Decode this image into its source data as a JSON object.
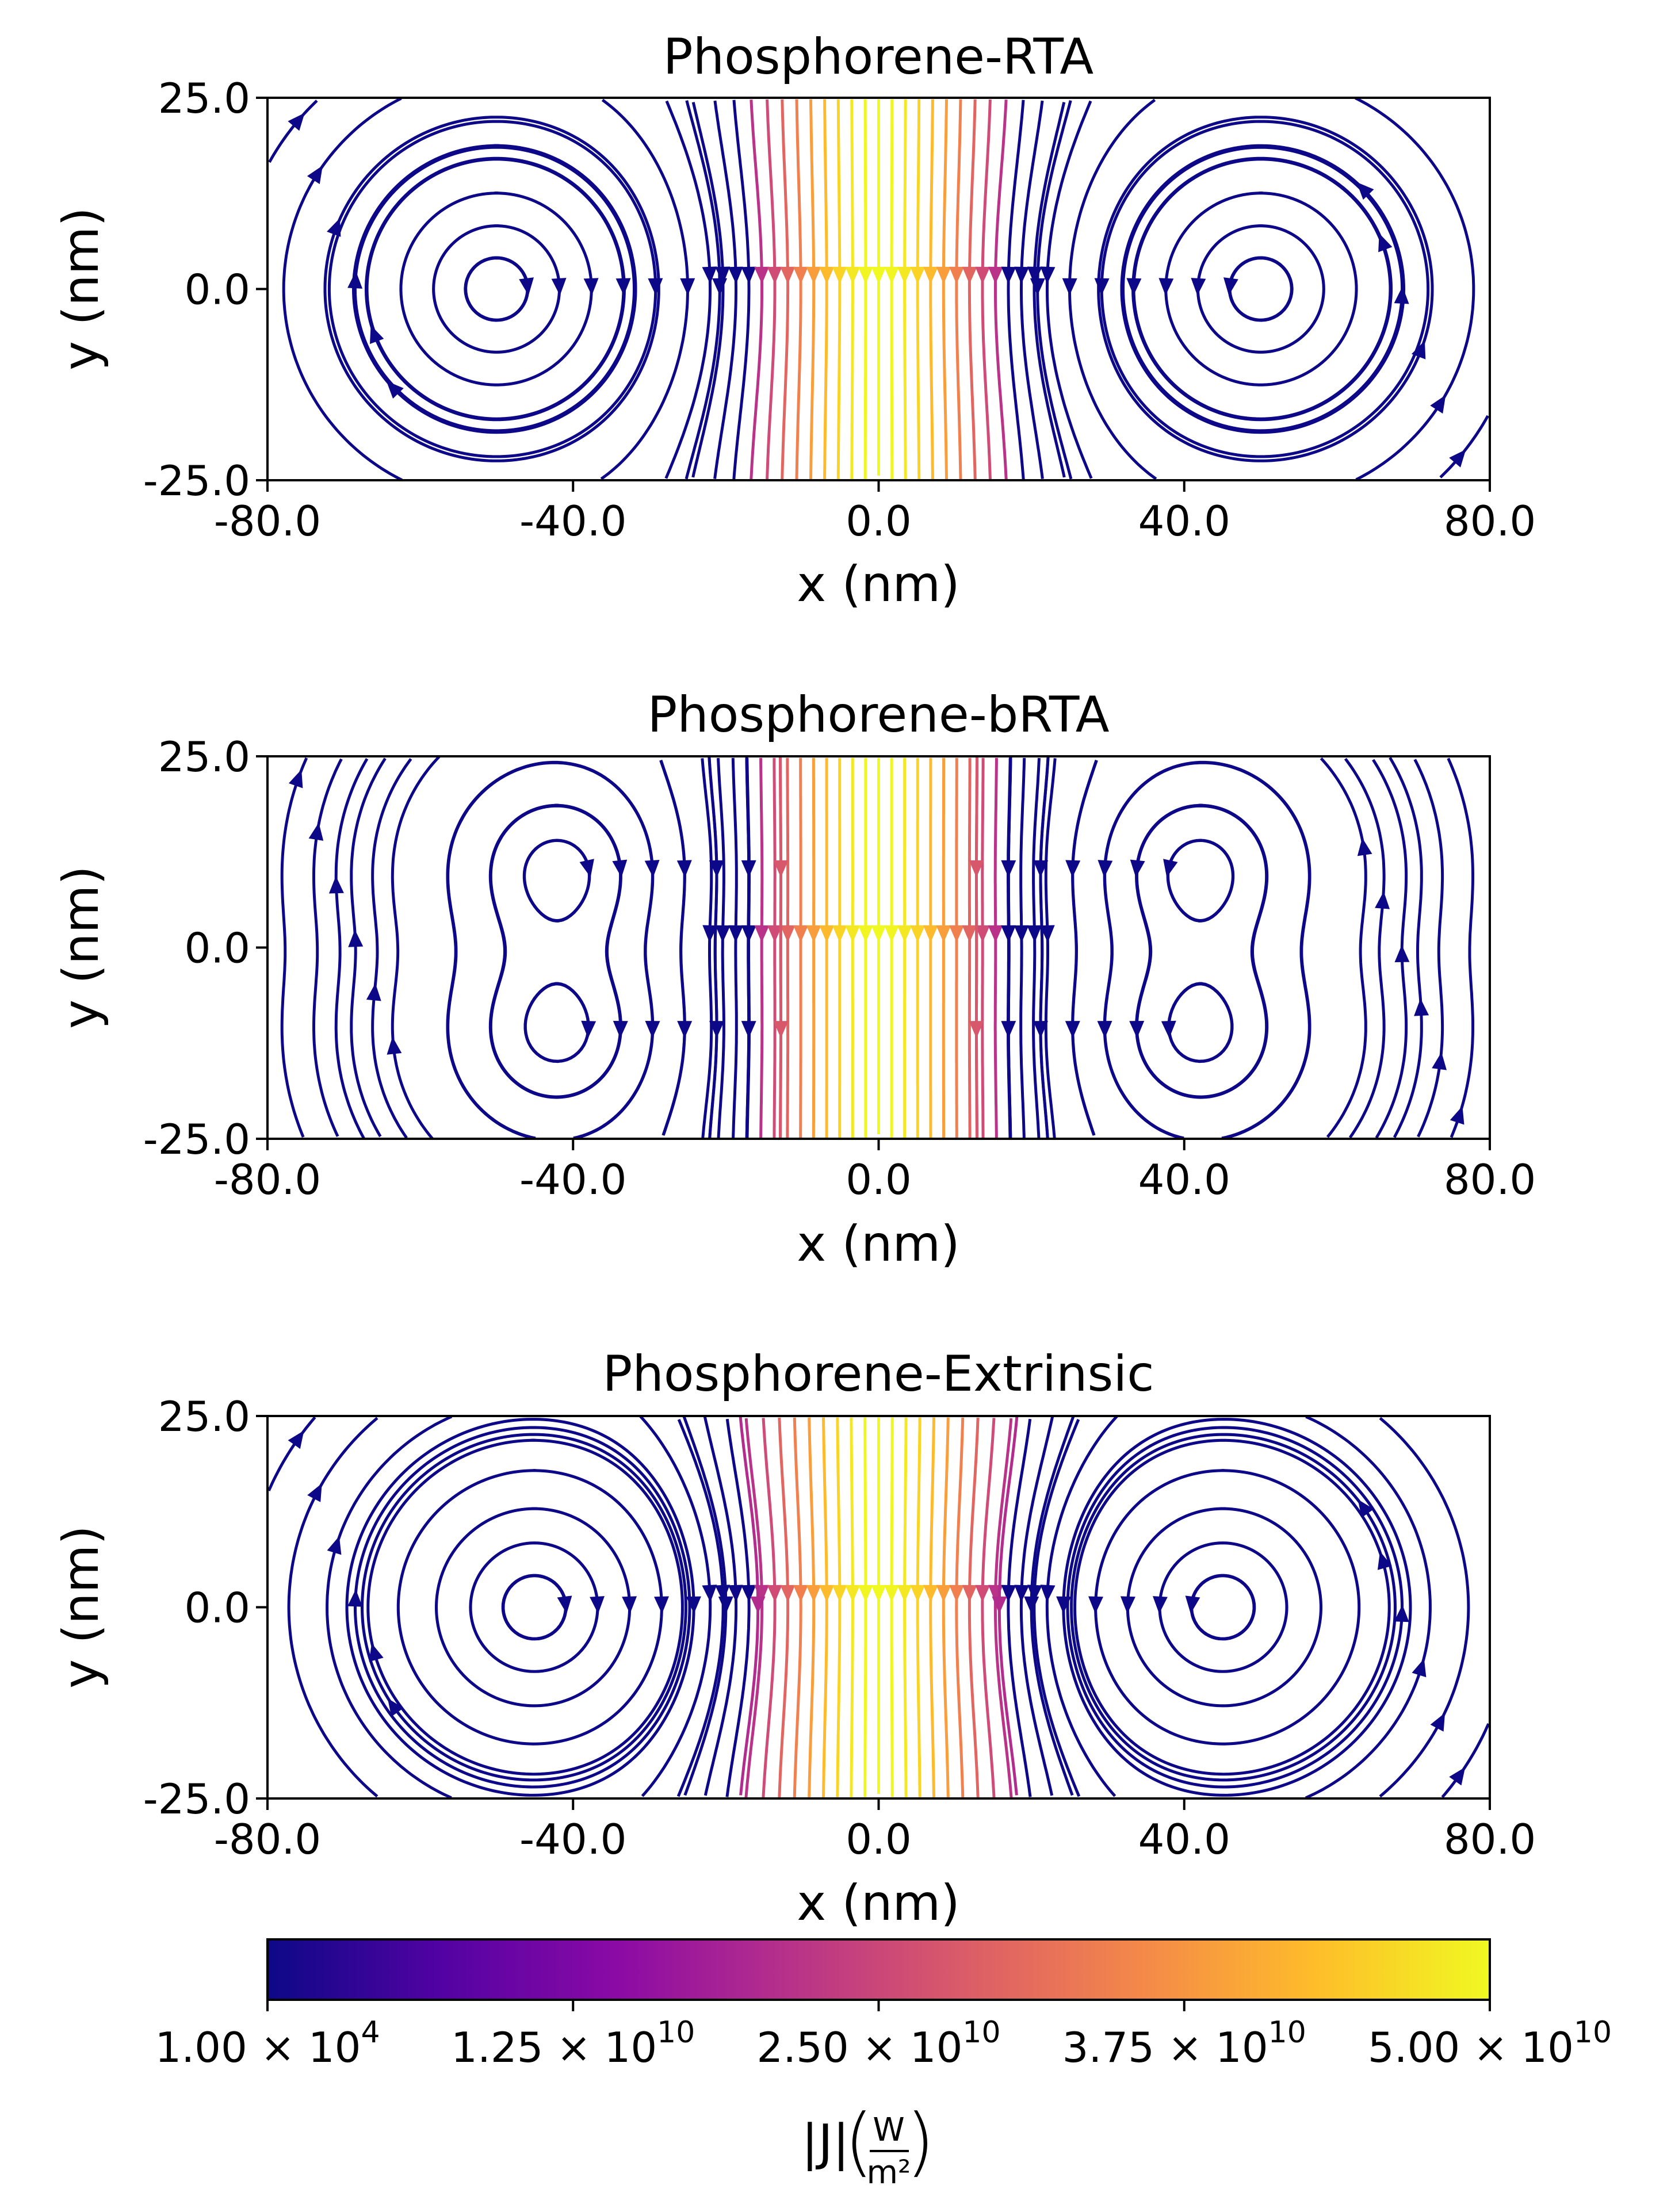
{
  "chart_data": [
    {
      "type": "streamplot",
      "title": "Phosphorene-RTA",
      "xlabel": "x (nm)",
      "ylabel": "y (nm)",
      "xlim": [
        -80,
        80
      ],
      "ylim": [
        -25,
        25
      ],
      "xticks": [
        "-80.0",
        "-40.0",
        "0.0",
        "40.0",
        "80.0"
      ],
      "yticks": [
        "25.0",
        "0.0",
        "-25.0"
      ],
      "vortex_centers": [
        [
          -50,
          0
        ],
        [
          50,
          0
        ]
      ],
      "central_flow_direction": "downward",
      "max_flux_at_center": true
    },
    {
      "type": "streamplot",
      "title": "Phosphorene-bRTA",
      "xlabel": "x (nm)",
      "ylabel": "y (nm)",
      "xlim": [
        -80,
        80
      ],
      "ylim": [
        -25,
        25
      ],
      "xticks": [
        "-80.0",
        "-40.0",
        "0.0",
        "40.0",
        "80.0"
      ],
      "yticks": [
        "25.0",
        "0.0",
        "-25.0"
      ],
      "vortex_centers": [
        [
          -42,
          10
        ],
        [
          -42,
          -11
        ],
        [
          42,
          10
        ],
        [
          42,
          -11
        ]
      ],
      "central_flow_direction": "downward",
      "max_flux_at_center": true
    },
    {
      "type": "streamplot",
      "title": "Phosphorene-Extrinsic",
      "xlabel": "x (nm)",
      "ylabel": "y (nm)",
      "xlim": [
        -80,
        80
      ],
      "ylim": [
        -25,
        25
      ],
      "xticks": [
        "-80.0",
        "-40.0",
        "0.0",
        "40.0",
        "80.0"
      ],
      "yticks": [
        "25.0",
        "0.0",
        "-25.0"
      ],
      "vortex_centers": [
        [
          -45,
          0
        ],
        [
          45,
          0
        ]
      ],
      "central_flow_direction": "downward",
      "max_flux_at_center": true
    }
  ],
  "colorbar": {
    "label": "|J|(W/m²)",
    "label_main": "|J|",
    "label_num": "W",
    "label_den": "m²",
    "range": [
      10000,
      50000000000
    ],
    "ticks": [
      {
        "value": 10000,
        "mantissa": "1.00",
        "exp": "4"
      },
      {
        "value": 12500000000,
        "mantissa": "1.25",
        "exp": "10"
      },
      {
        "value": 25000000000,
        "mantissa": "2.50",
        "exp": "10"
      },
      {
        "value": 37500000000,
        "mantissa": "3.75",
        "exp": "10"
      },
      {
        "value": 50000000000,
        "mantissa": "5.00",
        "exp": "10"
      }
    ],
    "colormap": "plasma",
    "colormap_stops": [
      "#0d0887",
      "#5302a3",
      "#8b0aa5",
      "#b83289",
      "#db5c68",
      "#f48849",
      "#febd2a",
      "#f0f921"
    ]
  }
}
